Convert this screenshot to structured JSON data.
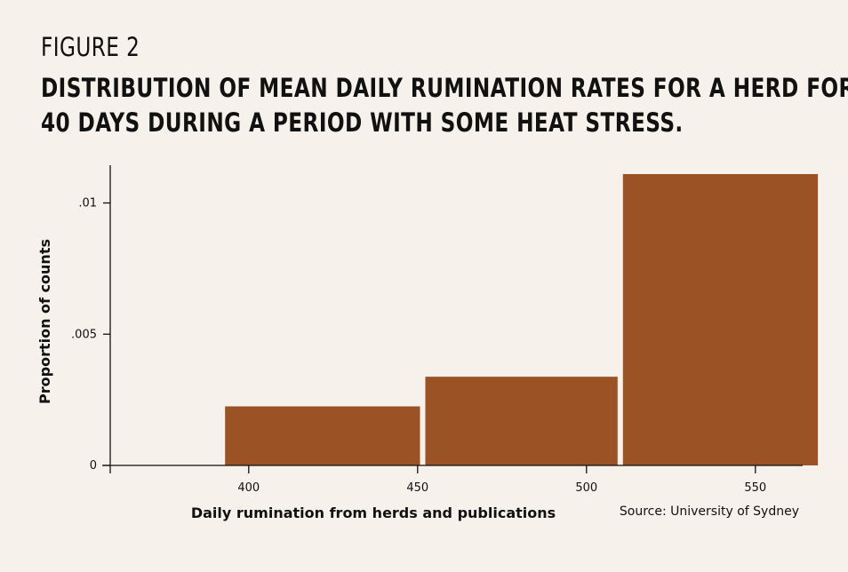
{
  "header": {
    "figure_label": "FIGURE 2",
    "title_line1": "DISTRIBUTION OF MEAN DAILY RUMINATION RATES FOR A HERD FOR",
    "title_line2": "40 DAYS DURING A PERIOD WITH SOME HEAT STRESS."
  },
  "source": "Source: University of Sydney",
  "colors": {
    "bar": "#9b5224",
    "background": "#f6f1ea",
    "axis": "#111111"
  },
  "chart_data": {
    "type": "bar",
    "title": "DISTRIBUTION OF MEAN DAILY RUMINATION RATES FOR A HERD FOR 40 DAYS DURING A PERIOD WITH SOME HEAT STRESS.",
    "xlabel": "Daily rumination from herds and publications",
    "ylabel": "Proportion of counts",
    "xlim": [
      359,
      564
    ],
    "ylim": [
      0,
      0.0111
    ],
    "x_ticks": [
      400,
      450,
      500,
      550
    ],
    "x_tick_labels": [
      "400",
      "450",
      "500",
      "550"
    ],
    "y_ticks": [
      0,
      0.005,
      0.01
    ],
    "y_tick_labels": [
      "0",
      ".005",
      ".01"
    ],
    "bins": [
      {
        "x0": 393,
        "x1": 451.5,
        "value": 0.00225
      },
      {
        "x0": 451.5,
        "x1": 510,
        "value": 0.00338
      },
      {
        "x0": 510,
        "x1": 568.5,
        "value": 0.0111
      }
    ],
    "grid": false,
    "legend": "none"
  }
}
